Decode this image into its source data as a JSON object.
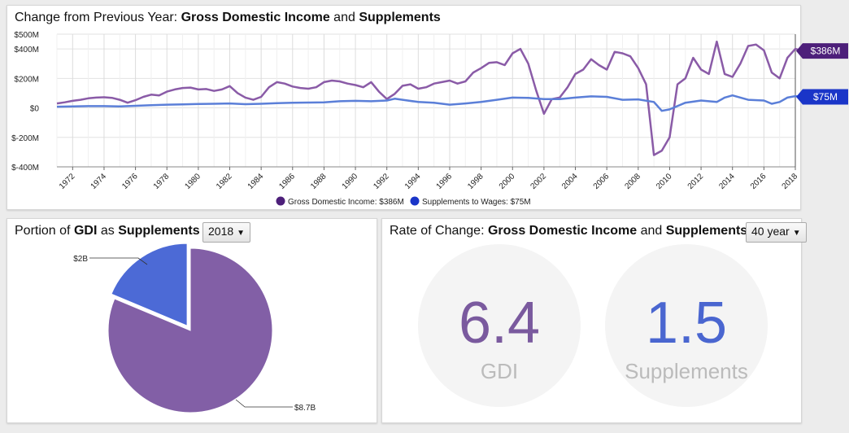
{
  "top_panel": {
    "title_prefix": "Change from Previous Year: ",
    "title_b1": "Gross Domestic Income",
    "title_mid": " and ",
    "title_b2": "Supplements",
    "badge_gdi": "$386M",
    "badge_supp": "$75M",
    "legend_gdi": "Gross Domestic Income: $386M",
    "legend_supp": "Supplements to Wages: $75M"
  },
  "left_panel": {
    "title_prefix": "Portion of ",
    "title_b1": "GDI",
    "title_mid": " as ",
    "title_b2": "Supplements",
    "year_select": "2018",
    "label_small": "$2B",
    "label_large": "$8.7B"
  },
  "right_panel": {
    "title_prefix": "Rate of Change: ",
    "title_b1": "Gross Domestic Income",
    "title_mid": " and ",
    "title_b2": "Supplements",
    "range_select": "40 year",
    "gdi_value": "6.4",
    "gdi_label": "GDI",
    "supp_value": "1.5",
    "supp_label": "Supplements"
  },
  "colors": {
    "gdi": "#8a5ba7",
    "supp": "#5b7fd8",
    "gdi_badge": "#4d1f7a",
    "supp_badge": "#1a35c8",
    "pie_gdi": "#825fa6",
    "pie_supp": "#4c6ad6",
    "gdi_number": "#7a5a9e",
    "supp_number": "#4a66d0"
  },
  "chart_data": [
    {
      "type": "line",
      "y_unit": "USD millions",
      "ylim": [
        -400,
        500
      ],
      "y_ticks": [
        -400,
        -200,
        0,
        200,
        400,
        500
      ],
      "y_tick_labels": [
        "$-400M",
        "$-200M",
        "$0",
        "$200M",
        "$400M",
        "$500M"
      ],
      "xlim": [
        1971,
        2018
      ],
      "x_ticks": [
        1972,
        1974,
        1976,
        1978,
        1980,
        1982,
        1984,
        1986,
        1988,
        1990,
        1992,
        1994,
        1996,
        1998,
        2000,
        2002,
        2004,
        2006,
        2008,
        2010,
        2012,
        2014,
        2016,
        2018
      ],
      "grid": true,
      "legend": "bottom",
      "series": [
        {
          "name": "Gross Domestic Income",
          "points": [
            [
              1971.0,
              30
            ],
            [
              1971.5,
              38
            ],
            [
              1972.0,
              48
            ],
            [
              1972.5,
              55
            ],
            [
              1973.0,
              65
            ],
            [
              1973.5,
              70
            ],
            [
              1974.0,
              72
            ],
            [
              1974.5,
              68
            ],
            [
              1975.0,
              55
            ],
            [
              1975.5,
              35
            ],
            [
              1976.0,
              52
            ],
            [
              1976.5,
              75
            ],
            [
              1977.0,
              90
            ],
            [
              1977.5,
              85
            ],
            [
              1978.0,
              110
            ],
            [
              1978.5,
              125
            ],
            [
              1979.0,
              135
            ],
            [
              1979.5,
              138
            ],
            [
              1980.0,
              125
            ],
            [
              1980.5,
              128
            ],
            [
              1981.0,
              115
            ],
            [
              1981.5,
              125
            ],
            [
              1982.0,
              148
            ],
            [
              1982.5,
              100
            ],
            [
              1983.0,
              70
            ],
            [
              1983.5,
              55
            ],
            [
              1984.0,
              75
            ],
            [
              1984.5,
              140
            ],
            [
              1985.0,
              175
            ],
            [
              1985.5,
              165
            ],
            [
              1986.0,
              145
            ],
            [
              1986.5,
              135
            ],
            [
              1987.0,
              130
            ],
            [
              1987.5,
              140
            ],
            [
              1988.0,
              175
            ],
            [
              1988.5,
              185
            ],
            [
              1989.0,
              180
            ],
            [
              1989.5,
              165
            ],
            [
              1990.0,
              155
            ],
            [
              1990.5,
              140
            ],
            [
              1991.0,
              175
            ],
            [
              1991.5,
              110
            ],
            [
              1992.0,
              60
            ],
            [
              1992.5,
              95
            ],
            [
              1993.0,
              150
            ],
            [
              1993.5,
              160
            ],
            [
              1994.0,
              130
            ],
            [
              1994.5,
              140
            ],
            [
              1995.0,
              165
            ],
            [
              1995.5,
              175
            ],
            [
              1996.0,
              185
            ],
            [
              1996.5,
              165
            ],
            [
              1997.0,
              180
            ],
            [
              1997.5,
              240
            ],
            [
              1998.0,
              270
            ],
            [
              1998.5,
              305
            ],
            [
              1999.0,
              310
            ],
            [
              1999.5,
              290
            ],
            [
              2000.0,
              370
            ],
            [
              2000.5,
              400
            ],
            [
              2001.0,
              300
            ],
            [
              2001.5,
              120
            ],
            [
              2002.0,
              -40
            ],
            [
              2002.5,
              60
            ],
            [
              2003.0,
              70
            ],
            [
              2003.5,
              140
            ],
            [
              2004.0,
              230
            ],
            [
              2004.5,
              260
            ],
            [
              2005.0,
              330
            ],
            [
              2005.5,
              290
            ],
            [
              2006.0,
              260
            ],
            [
              2006.5,
              380
            ],
            [
              2007.0,
              370
            ],
            [
              2007.5,
              350
            ],
            [
              2008.0,
              270
            ],
            [
              2008.5,
              160
            ],
            [
              2009.0,
              -320
            ],
            [
              2009.5,
              -290
            ],
            [
              2010.0,
              -200
            ],
            [
              2010.5,
              160
            ],
            [
              2011.0,
              200
            ],
            [
              2011.5,
              340
            ],
            [
              2012.0,
              260
            ],
            [
              2012.5,
              230
            ],
            [
              2013.0,
              450
            ],
            [
              2013.5,
              230
            ],
            [
              2014.0,
              210
            ],
            [
              2014.5,
              300
            ],
            [
              2015.0,
              420
            ],
            [
              2015.5,
              430
            ],
            [
              2016.0,
              390
            ],
            [
              2016.5,
              240
            ],
            [
              2017.0,
              200
            ],
            [
              2017.5,
              340
            ],
            [
              2018.0,
              400
            ],
            [
              2018.5,
              386
            ]
          ]
        },
        {
          "name": "Supplements to Wages",
          "points": [
            [
              1971.0,
              8
            ],
            [
              1972.0,
              10
            ],
            [
              1973.0,
              12
            ],
            [
              1974.0,
              12
            ],
            [
              1975.0,
              10
            ],
            [
              1976.0,
              14
            ],
            [
              1977.0,
              18
            ],
            [
              1978.0,
              22
            ],
            [
              1979.0,
              24
            ],
            [
              1980.0,
              26
            ],
            [
              1981.0,
              28
            ],
            [
              1982.0,
              30
            ],
            [
              1983.0,
              25
            ],
            [
              1984.0,
              28
            ],
            [
              1985.0,
              32
            ],
            [
              1986.0,
              35
            ],
            [
              1987.0,
              36
            ],
            [
              1988.0,
              38
            ],
            [
              1989.0,
              45
            ],
            [
              1990.0,
              48
            ],
            [
              1991.0,
              45
            ],
            [
              1992.0,
              50
            ],
            [
              1992.5,
              62
            ],
            [
              1993.0,
              55
            ],
            [
              1994.0,
              40
            ],
            [
              1995.0,
              35
            ],
            [
              1996.0,
              22
            ],
            [
              1997.0,
              30
            ],
            [
              1998.0,
              40
            ],
            [
              1999.0,
              55
            ],
            [
              2000.0,
              70
            ],
            [
              2001.0,
              68
            ],
            [
              2002.0,
              60
            ],
            [
              2003.0,
              60
            ],
            [
              2004.0,
              70
            ],
            [
              2005.0,
              78
            ],
            [
              2006.0,
              75
            ],
            [
              2007.0,
              55
            ],
            [
              2008.0,
              58
            ],
            [
              2009.0,
              40
            ],
            [
              2009.5,
              -20
            ],
            [
              2010.0,
              -10
            ],
            [
              2011.0,
              35
            ],
            [
              2012.0,
              50
            ],
            [
              2013.0,
              40
            ],
            [
              2013.5,
              70
            ],
            [
              2014.0,
              85
            ],
            [
              2015.0,
              55
            ],
            [
              2016.0,
              50
            ],
            [
              2016.5,
              28
            ],
            [
              2017.0,
              40
            ],
            [
              2017.5,
              70
            ],
            [
              2018.0,
              80
            ],
            [
              2018.5,
              75
            ]
          ]
        }
      ]
    },
    {
      "type": "pie",
      "slices": [
        {
          "label": "$8.7B",
          "value": 8.7
        },
        {
          "label": "$2B",
          "value": 2.0
        }
      ]
    }
  ]
}
